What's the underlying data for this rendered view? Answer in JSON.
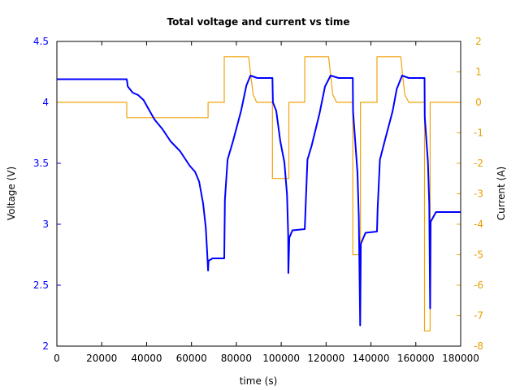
{
  "chart_data": {
    "type": "line",
    "title": "Total voltage and current vs time",
    "xlabel": "time (s)",
    "ylabel_left": "Voltage (V)",
    "ylabel_right": "Current (A)",
    "xlim": [
      0,
      180000
    ],
    "ylim_left": [
      2,
      4.5
    ],
    "ylim_right": [
      -8,
      2
    ],
    "x_ticks": [
      "0",
      "20000",
      "40000",
      "60000",
      "80000",
      "100000",
      "120000",
      "140000",
      "160000",
      "180000"
    ],
    "y_left_ticks": [
      "2",
      "2.5",
      "3",
      "3.5",
      "4",
      "4.5"
    ],
    "y_right_ticks": [
      "-8",
      "-7",
      "-6",
      "-5",
      "-4",
      "-3",
      "-2",
      "-1",
      "0",
      "1",
      "2"
    ],
    "grid": false,
    "colors": {
      "voltage": "#0000ff",
      "current": "#f0a30a",
      "left_axis_text": "#0000ff",
      "right_axis_text": "#e69f00"
    },
    "series": [
      {
        "axis": "left",
        "points": [
          [
            0,
            4.19
          ],
          [
            31150,
            4.19
          ],
          [
            31600,
            4.13
          ],
          [
            33800,
            4.08
          ],
          [
            36200,
            4.06
          ],
          [
            38600,
            4.02
          ],
          [
            43500,
            3.86
          ],
          [
            47100,
            3.78
          ],
          [
            50700,
            3.68
          ],
          [
            54900,
            3.6
          ],
          [
            59200,
            3.48
          ],
          [
            61600,
            3.43
          ],
          [
            63400,
            3.35
          ],
          [
            65200,
            3.17
          ],
          [
            66400,
            2.97
          ],
          [
            67100,
            2.73
          ],
          [
            67400,
            2.62
          ],
          [
            67600,
            2.7
          ],
          [
            69400,
            2.72
          ],
          [
            74600,
            2.72
          ],
          [
            74900,
            3.2
          ],
          [
            76100,
            3.53
          ],
          [
            78500,
            3.68
          ],
          [
            82100,
            3.93
          ],
          [
            84500,
            4.14
          ],
          [
            86300,
            4.22
          ],
          [
            89300,
            4.2
          ],
          [
            96100,
            4.2
          ],
          [
            96300,
            4.0
          ],
          [
            97800,
            3.93
          ],
          [
            99600,
            3.68
          ],
          [
            101400,
            3.51
          ],
          [
            102600,
            3.24
          ],
          [
            103100,
            2.91
          ],
          [
            103200,
            2.6
          ],
          [
            103600,
            2.89
          ],
          [
            105000,
            2.95
          ],
          [
            110500,
            2.96
          ],
          [
            111700,
            3.53
          ],
          [
            113500,
            3.64
          ],
          [
            117100,
            3.91
          ],
          [
            119500,
            4.13
          ],
          [
            122000,
            4.22
          ],
          [
            125600,
            4.2
          ],
          [
            131900,
            4.2
          ],
          [
            132000,
            3.93
          ],
          [
            134000,
            3.42
          ],
          [
            134600,
            3.06
          ],
          [
            135200,
            2.17
          ],
          [
            135500,
            2.84
          ],
          [
            137600,
            2.93
          ],
          [
            142700,
            2.94
          ],
          [
            143000,
            3.13
          ],
          [
            144000,
            3.53
          ],
          [
            146100,
            3.68
          ],
          [
            149700,
            3.93
          ],
          [
            151500,
            4.11
          ],
          [
            153900,
            4.22
          ],
          [
            156900,
            4.2
          ],
          [
            163900,
            4.2
          ],
          [
            164000,
            3.88
          ],
          [
            165400,
            3.51
          ],
          [
            166000,
            3.17
          ],
          [
            166400,
            2.31
          ],
          [
            166600,
            3.02
          ],
          [
            169000,
            3.1
          ],
          [
            180000,
            3.1
          ]
        ]
      },
      {
        "axis": "right",
        "points": [
          [
            0,
            0
          ],
          [
            31150,
            0
          ],
          [
            31150,
            -0.5
          ],
          [
            67400,
            -0.5
          ],
          [
            67400,
            0
          ],
          [
            74600,
            0
          ],
          [
            74600,
            1.5
          ],
          [
            85500,
            1.5
          ],
          [
            86300,
            0.96
          ],
          [
            87500,
            0.25
          ],
          [
            89100,
            0
          ],
          [
            96100,
            0
          ],
          [
            96100,
            -2.5
          ],
          [
            103400,
            -2.5
          ],
          [
            103400,
            0
          ],
          [
            110500,
            0
          ],
          [
            110500,
            1.5
          ],
          [
            121100,
            1.5
          ],
          [
            122000,
            0.9
          ],
          [
            123000,
            0.25
          ],
          [
            124700,
            0
          ],
          [
            131900,
            0
          ],
          [
            131900,
            -5
          ],
          [
            135300,
            -5
          ],
          [
            135300,
            0
          ],
          [
            142700,
            0
          ],
          [
            142700,
            1.5
          ],
          [
            153300,
            1.5
          ],
          [
            154100,
            0.9
          ],
          [
            155100,
            0.25
          ],
          [
            156900,
            0
          ],
          [
            163900,
            0
          ],
          [
            163900,
            -7.5
          ],
          [
            166400,
            -7.5
          ],
          [
            166400,
            0
          ],
          [
            180000,
            0
          ]
        ]
      }
    ]
  }
}
